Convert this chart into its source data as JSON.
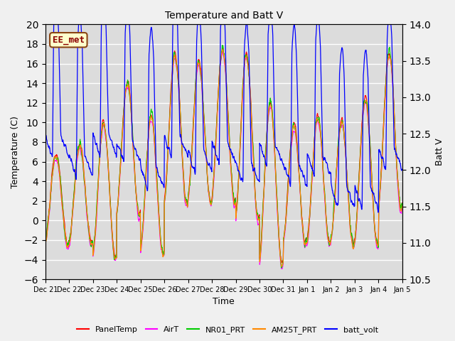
{
  "title": "Temperature and Batt V",
  "xlabel": "Time",
  "ylabel_left": "Temperature (C)",
  "ylabel_right": "Batt V",
  "ylim_left": [
    -6,
    20
  ],
  "ylim_right": [
    10.5,
    14.0
  ],
  "annotation_text": "EE_met",
  "annotation_color": "#8B0000",
  "annotation_bg": "#FFFFCC",
  "annotation_border": "#8B4513",
  "colors": {
    "PanelTemp": "#FF0000",
    "AirT": "#FF00FF",
    "NR01_PRT": "#00CC00",
    "AM25T_PRT": "#FF8800",
    "batt_volt": "#0000FF"
  },
  "x_tick_labels": [
    "Dec 21",
    "Dec 22",
    "Dec 23",
    "Dec 24",
    "Dec 25",
    "Dec 26",
    "Dec 27",
    "Dec 28",
    "Dec 29",
    "Dec 30",
    "Dec 31",
    "Jan 1",
    "Jan 2",
    "Jan 3",
    "Jan 4",
    "Jan 5"
  ],
  "background_color": "#DCDCDC",
  "axes_bg": "#DCDCDC",
  "grid_color": "#FFFFFF",
  "fig_bg": "#F0F0F0"
}
